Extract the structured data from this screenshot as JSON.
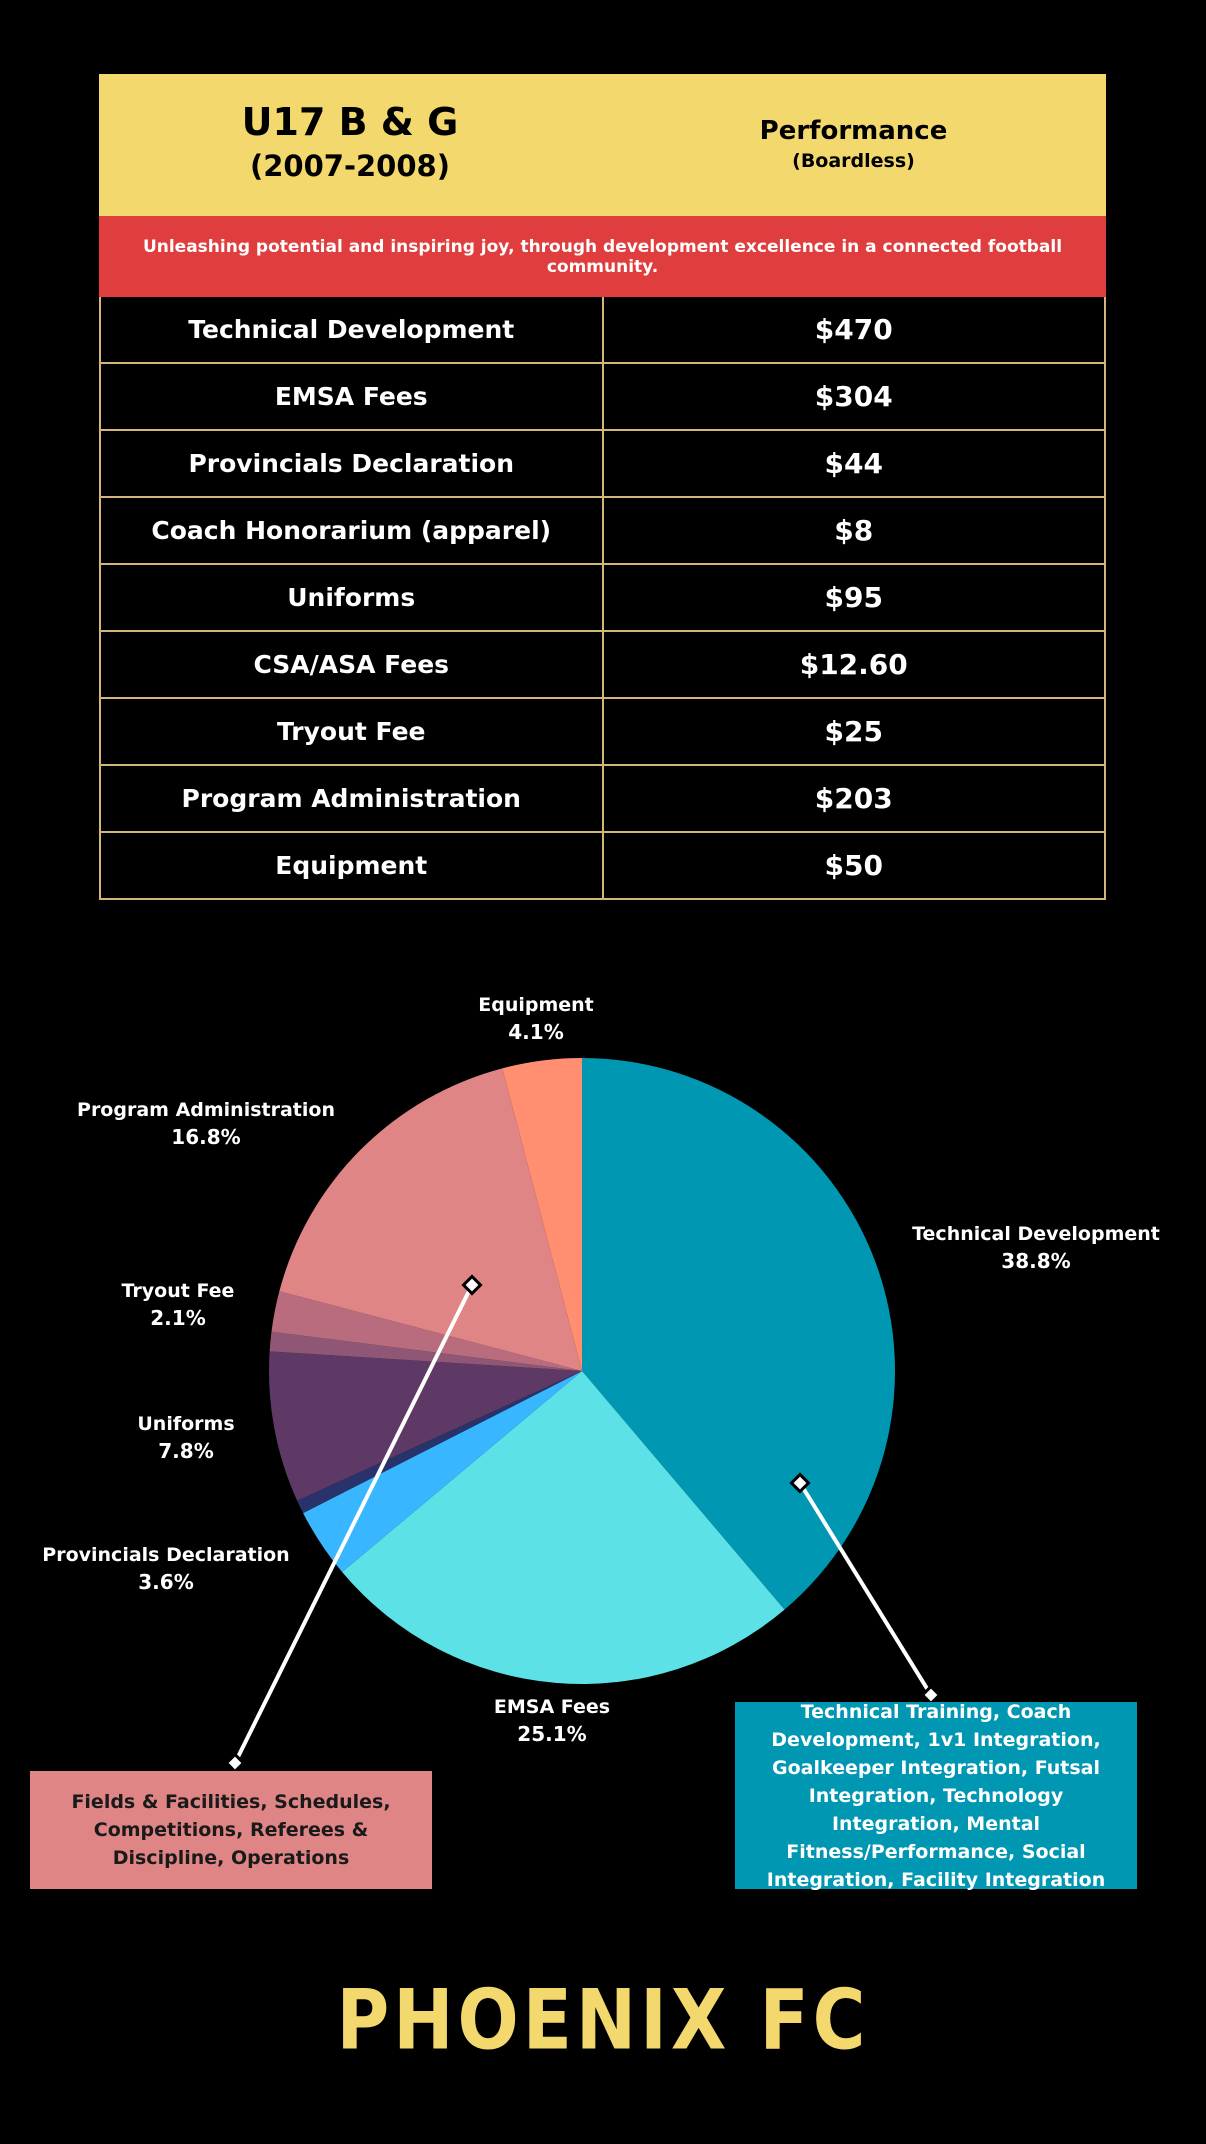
{
  "header": {
    "team": "U17 B & G",
    "years": "(2007-2008)",
    "program": "Performance",
    "program_note": "(Boardless)"
  },
  "mission": "Unleashing potential and inspiring joy, through development excellence in a connected football community.",
  "fees": [
    {
      "item": "Technical Development",
      "amount": "$470"
    },
    {
      "item": "EMSA Fees",
      "amount": "$304"
    },
    {
      "item": "Provincials Declaration",
      "amount": "$44"
    },
    {
      "item": "Coach Honorarium (apparel)",
      "amount": "$8"
    },
    {
      "item": "Uniforms",
      "amount": "$95"
    },
    {
      "item": "CSA/ASA Fees",
      "amount": "$12.60"
    },
    {
      "item": "Tryout Fee",
      "amount": "$25"
    },
    {
      "item": "Program Administration",
      "amount": "$203"
    },
    {
      "item": "Equipment",
      "amount": "$50"
    }
  ],
  "chart_data": {
    "type": "pie",
    "title": "",
    "start_angle": "12 o'clock",
    "direction": "clockwise",
    "slices": [
      {
        "label": "Technical Development",
        "value": 38.8,
        "percent_label": "38.8%",
        "color": "#0097b2",
        "show_label": true
      },
      {
        "label": "EMSA Fees",
        "value": 25.1,
        "percent_label": "25.1%",
        "color": "#5ce1e6",
        "show_label": true
      },
      {
        "label": "Provincials Declaration",
        "value": 3.6,
        "percent_label": "3.6%",
        "color": "#38b6ff",
        "show_label": true
      },
      {
        "label": "Coach Honorarium (apparel)",
        "value": 0.7,
        "percent_label": "0.7%",
        "color": "#29336b",
        "show_label": false
      },
      {
        "label": "Uniforms",
        "value": 7.8,
        "percent_label": "7.8%",
        "color": "#5e3966",
        "show_label": true
      },
      {
        "label": "CSA/ASA Fees",
        "value": 1.0,
        "percent_label": "1.0%",
        "color": "#8f5775",
        "show_label": false
      },
      {
        "label": "Tryout Fee",
        "value": 2.1,
        "percent_label": "2.1%",
        "color": "#b86c7e",
        "show_label": true
      },
      {
        "label": "Program Administration",
        "value": 16.8,
        "percent_label": "16.8%",
        "color": "#e08585",
        "show_label": true
      },
      {
        "label": "Equipment",
        "value": 4.1,
        "percent_label": "4.1%",
        "color": "#ff8f70",
        "show_label": true
      }
    ]
  },
  "callouts": {
    "program_administration": "Fields & Facilities, Schedules, Competitions, Referees & Discipline, Operations",
    "technical_development": "Technical Training, Coach Development, 1v1 Integration, Goalkeeper Integration, Futsal Integration, Technology Integration, Mental Fitness/Performance, Social Integration, Facility Integration"
  },
  "logo": "PHOENIX FC",
  "colors": {
    "background": "#000000",
    "header_yellow": "#f3d96d",
    "mission_red": "#e03e3e",
    "table_border": "#d3b679"
  }
}
